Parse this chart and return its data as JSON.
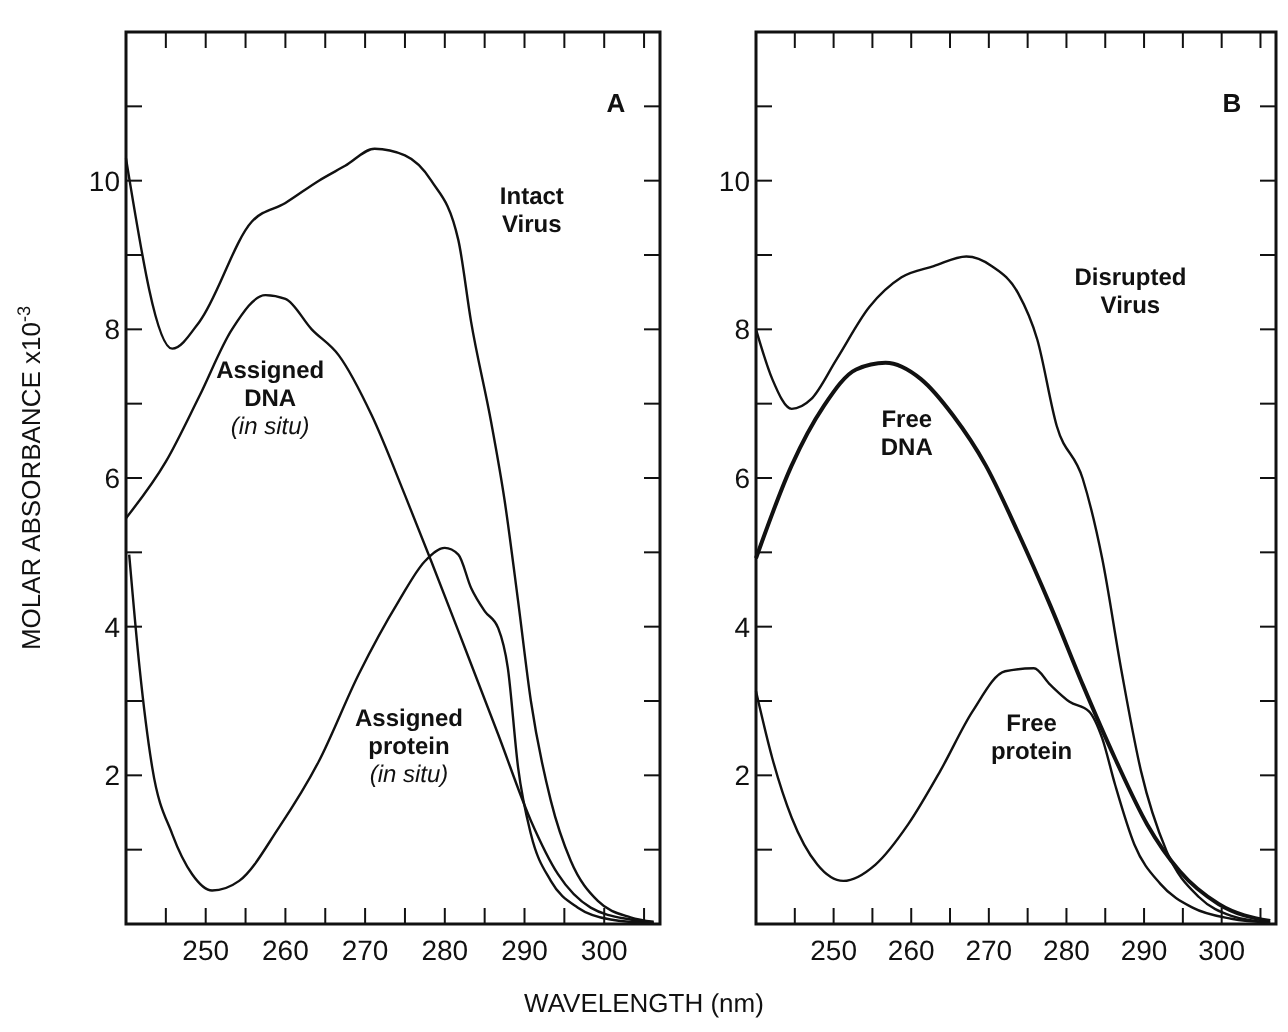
{
  "chart_data": [
    {
      "type": "line",
      "ylabel": "MOLAR ABSORBANCE x10$^{-3}$",
      "xlabel": "WAVELENGTH (nm)",
      "annotations": [
        "A"
      ],
      "xlim": [
        240,
        307
      ],
      "ylim": [
        0,
        12
      ],
      "xticks": [
        {
          "value": 245,
          "label": null
        },
        250,
        {
          "value": 255,
          "label": null
        },
        260,
        {
          "value": 265,
          "label": null
        },
        270,
        {
          "value": 275,
          "label": null
        },
        280,
        {
          "value": 285,
          "label": null
        },
        290,
        {
          "value": 295,
          "label": null
        },
        300,
        {
          "value": 305,
          "label": null
        }
      ],
      "yticks": [
        {
          "value": 1,
          "label": null
        },
        2,
        {
          "value": 3,
          "label": null
        },
        4,
        {
          "value": 5,
          "label": null
        },
        6,
        {
          "value": 7,
          "label": null
        },
        8,
        {
          "value": 9,
          "label": null
        },
        10,
        {
          "value": 11,
          "label": null
        }
      ],
      "grid": false,
      "legend": false,
      "marker": "none",
      "line_style": "solid",
      "series": [
        {
          "name": "Intact\nVirus",
          "color": "#111111",
          "x": [
            240,
            245.8,
            249.2,
            255.8,
            260,
            264.2,
            267.5,
            271.2,
            275,
            278.3,
            281.7,
            283.3,
            285.8,
            287.5,
            289.2,
            290.8,
            293.3,
            295.8,
            299.2,
            303.3,
            306.2
          ],
          "values": [
            10.3,
            7.74,
            8.1,
            9.45,
            9.7,
            10.0,
            10.2,
            10.43,
            10.34,
            10.0,
            9.2,
            8.1,
            6.76,
            5.7,
            4.34,
            3.0,
            1.66,
            0.85,
            0.31,
            0.09,
            0.03
          ]
        },
        {
          "name": "Assigned\nDNA\n(in situ)",
          "color": "#111111",
          "x": [
            240,
            245,
            249.2,
            253.3,
            257.5,
            260,
            263.3,
            266.7,
            270.8,
            275,
            278.3,
            282.5,
            286.7,
            290.8,
            294.2,
            298.3,
            303.3,
            306.2
          ],
          "values": [
            5.46,
            6.22,
            7.1,
            8.0,
            8.46,
            8.41,
            8.0,
            7.65,
            6.85,
            5.77,
            4.88,
            3.72,
            2.55,
            1.39,
            0.67,
            0.22,
            0.06,
            0.02
          ]
        },
        {
          "name": "Assigned\nprotein\n(in situ)",
          "color": "#111111",
          "x": [
            240.4,
            241.7,
            243.3,
            245.8,
            248.3,
            250.8,
            254.2,
            259.2,
            264.2,
            269.2,
            274.2,
            277.5,
            280,
            281.7,
            283.3,
            285,
            286.7,
            287.9,
            289.2,
            290.8,
            293.3,
            296.7,
            300.8,
            306.2
          ],
          "values": [
            4.97,
            3.45,
            2.1,
            1.21,
            0.67,
            0.45,
            0.58,
            1.3,
            2.19,
            3.36,
            4.34,
            4.88,
            5.06,
            4.97,
            4.52,
            4.21,
            3.98,
            3.45,
            2.1,
            1.21,
            0.58,
            0.22,
            0.06,
            0.01
          ]
        }
      ]
    },
    {
      "type": "line",
      "annotations": [
        "B"
      ],
      "xlim": [
        240,
        307
      ],
      "ylim": [
        0,
        12
      ],
      "xticks": [
        {
          "value": 245,
          "label": null
        },
        250,
        {
          "value": 255,
          "label": null
        },
        260,
        {
          "value": 265,
          "label": null
        },
        270,
        {
          "value": 275,
          "label": null
        },
        280,
        {
          "value": 285,
          "label": null
        },
        290,
        {
          "value": 295,
          "label": null
        },
        300,
        {
          "value": 305,
          "label": null
        }
      ],
      "yticks": [
        {
          "value": 1,
          "label": null
        },
        2,
        {
          "value": 3,
          "label": null
        },
        4,
        {
          "value": 5,
          "label": null
        },
        6,
        {
          "value": 7,
          "label": null
        },
        8,
        {
          "value": 9,
          "label": null
        },
        10,
        {
          "value": 11,
          "label": null
        }
      ],
      "grid": false,
      "legend": false,
      "marker": "none",
      "line_style": "solid",
      "series": [
        {
          "name": "Disrupted\nVirus",
          "color": "#111111",
          "x": [
            240,
            242.1,
            244.6,
            247.1,
            250.4,
            254.6,
            258.75,
            262.9,
            267.1,
            270.4,
            273.75,
            276.25,
            278.75,
            282.1,
            284.6,
            287.1,
            289.6,
            292.9,
            297.1,
            301.25,
            306.25
          ],
          "values": [
            8.0,
            7.33,
            6.93,
            7.06,
            7.6,
            8.3,
            8.7,
            8.85,
            8.98,
            8.85,
            8.49,
            7.86,
            6.7,
            5.99,
            4.92,
            3.4,
            2.06,
            0.98,
            0.36,
            0.11,
            0.02
          ]
        },
        {
          "name": "Free\nDNA",
          "color": "#111111",
          "x": [
            240,
            244.6,
            248.75,
            252.9,
            256.7,
            261.25,
            265.4,
            269.6,
            273.75,
            277.9,
            282.1,
            286.25,
            290.4,
            294.6,
            299.6,
            306.25
          ],
          "values": [
            4.92,
            6.17,
            6.97,
            7.46,
            7.55,
            7.33,
            6.84,
            6.17,
            5.27,
            4.29,
            3.22,
            2.23,
            1.34,
            0.71,
            0.27,
            0.04
          ]
        },
        {
          "name": "Free\nprotein",
          "color": "#111111",
          "x": [
            240,
            242.1,
            244.6,
            247.9,
            251.25,
            255.4,
            259.6,
            263.75,
            267.9,
            272.1,
            275.8,
            277.9,
            280.4,
            282.9,
            284.6,
            286.25,
            288.75,
            292.1,
            296.25,
            301.25,
            306.25
          ],
          "values": [
            3.13,
            2.23,
            1.43,
            0.8,
            0.58,
            0.8,
            1.34,
            2.06,
            2.86,
            3.4,
            3.44,
            3.22,
            2.99,
            2.86,
            2.5,
            1.88,
            1.07,
            0.54,
            0.22,
            0.07,
            0.02
          ]
        }
      ]
    }
  ]
}
